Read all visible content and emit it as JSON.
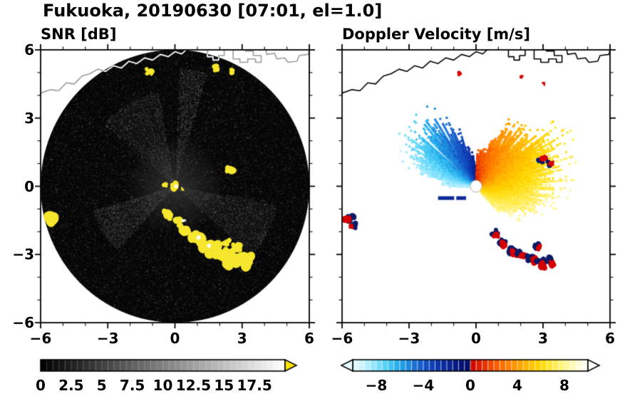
{
  "figure": {
    "title": "Fukuoka, 20190630 [07:01, el=1.0]",
    "background": "#ffffff",
    "text_color": "#000000",
    "frame_color": "#000000"
  },
  "chart_data": [
    {
      "type": "heatmap",
      "variant": "radar-ppi",
      "title": "SNR [dB]",
      "xlim": [
        -6,
        6
      ],
      "ylim": [
        -6,
        6
      ],
      "xticks": [
        -6,
        -3,
        0,
        3,
        6
      ],
      "xtick_labels": [
        "−6",
        "−3",
        "0",
        "3",
        "6"
      ],
      "yticks": [
        -6,
        -3,
        0,
        3,
        6
      ],
      "ytick_labels": [
        "−6",
        "−3",
        "0",
        "3",
        "6"
      ],
      "minor_tick_step": 1,
      "colorbar": {
        "min": 0,
        "max": 20,
        "segments": 40,
        "kind": "grayscale",
        "tick_values": [
          0,
          2.5,
          5,
          7.5,
          10,
          12.5,
          15,
          17.5
        ],
        "tick_labels": [
          "0",
          "2.5",
          "5",
          "7.5",
          "10",
          "12.5",
          "15",
          "17.5"
        ],
        "over_color": "#ffe600",
        "extend": "max"
      },
      "features": {
        "scan_disk": {
          "cx": 0,
          "cy": 0,
          "r": 6,
          "fill": "#060606"
        },
        "noise_seed": 20190630,
        "speckle_count": 15000,
        "bright_wedges": [
          {
            "az0": 100,
            "az1": 140,
            "r1": 4.2,
            "alpha": 0.05
          },
          {
            "az0": 196,
            "az1": 228,
            "r1": 3.8,
            "alpha": 0.06
          },
          {
            "az0": 318,
            "az1": 352,
            "r1": 4.6,
            "alpha": 0.05
          },
          {
            "az0": 74,
            "az1": 88,
            "r1": 5.2,
            "alpha": 0.04
          }
        ],
        "echo_color": "#f6e62e",
        "strong_echoes": [
          {
            "x": -0.35,
            "y": -1.25,
            "s": 0.28
          },
          {
            "x": 0.1,
            "y": -1.6,
            "s": 0.24
          },
          {
            "x": 0.5,
            "y": -1.95,
            "s": 0.3
          },
          {
            "x": 0.92,
            "y": -2.18,
            "s": 0.34
          },
          {
            "x": 1.32,
            "y": -2.5,
            "s": 0.38
          },
          {
            "x": 1.72,
            "y": -2.8,
            "s": 0.42
          },
          {
            "x": 2.12,
            "y": -3.02,
            "s": 0.38
          },
          {
            "x": 2.52,
            "y": -3.22,
            "s": 0.42
          },
          {
            "x": 2.95,
            "y": -3.38,
            "s": 0.46
          },
          {
            "x": 3.32,
            "y": -3.26,
            "s": 0.36
          },
          {
            "x": 2.75,
            "y": -2.68,
            "s": 0.26
          },
          {
            "x": 2.3,
            "y": -2.5,
            "s": 0.2
          }
        ],
        "edge_echo": {
          "x": -5.6,
          "y": -1.55,
          "s": 0.42
        },
        "coast_echoes": [
          {
            "x": -1.15,
            "y": 5.05,
            "s": 0.2
          },
          {
            "x": 1.9,
            "y": 5.2,
            "s": 0.22
          },
          {
            "x": 2.55,
            "y": 5.05,
            "s": 0.18
          }
        ],
        "mid_echo": {
          "x": 2.45,
          "y": 0.78,
          "s": 0.26
        },
        "center_cluster": [
          {
            "x": 0.0,
            "y": 0.02,
            "s": 0.22
          },
          {
            "x": -0.45,
            "y": 0.06,
            "s": 0.12
          },
          {
            "x": 0.3,
            "y": -0.12,
            "s": 0.1
          }
        ],
        "white_dashes": [
          {
            "x": 1.05,
            "y": -2.25,
            "s": 0.12
          },
          {
            "x": 1.5,
            "y": -2.62,
            "s": 0.1
          },
          {
            "x": 0.4,
            "y": -1.55,
            "s": 0.09
          }
        ]
      }
    },
    {
      "type": "heatmap",
      "variant": "radar-ppi",
      "title": "Doppler Velocity [m/s]",
      "xlim": [
        -6,
        6
      ],
      "ylim": [
        -6,
        6
      ],
      "xticks": [
        -6,
        -3,
        0,
        3,
        6
      ],
      "xtick_labels": [
        "−6",
        "−3",
        "0",
        "3",
        "6"
      ],
      "yticks": [
        -6,
        -3,
        0,
        3,
        6
      ],
      "ytick_labels": [],
      "minor_tick_step": 1,
      "colorbar": {
        "min": -10,
        "max": 10,
        "segments": 40,
        "kind": "velocity",
        "tick_values": [
          -8,
          -4,
          0,
          4,
          8
        ],
        "tick_labels": [
          "−8",
          "−4",
          "0",
          "4",
          "8"
        ],
        "extend": "both"
      },
      "features": {
        "palette_stops": [
          [
            -10,
            "#eafbff"
          ],
          [
            -9,
            "#c0f1ff"
          ],
          [
            -8,
            "#84e3ff"
          ],
          [
            -7,
            "#49ccf6"
          ],
          [
            -6,
            "#22a7ea"
          ],
          [
            -5,
            "#1c7dd8"
          ],
          [
            -4,
            "#1554c6"
          ],
          [
            -3,
            "#0e3ab0"
          ],
          [
            -2,
            "#0a2798"
          ],
          [
            -1,
            "#05167c"
          ],
          [
            -0.05,
            "#020c62"
          ],
          [
            0.05,
            "#cf0000"
          ],
          [
            1,
            "#e22900"
          ],
          [
            2,
            "#f25300"
          ],
          [
            3,
            "#ff7900"
          ],
          [
            4,
            "#ff9c00"
          ],
          [
            5,
            "#ffbd00"
          ],
          [
            6,
            "#ffd800"
          ],
          [
            7,
            "#ffea45"
          ],
          [
            8,
            "#fff590"
          ],
          [
            9,
            "#fffbc9"
          ],
          [
            10,
            "#ffffff"
          ]
        ],
        "fan_lobes": [
          {
            "az0": 92,
            "az1": 182,
            "r_base": 0.9,
            "r_amp": 2.3,
            "v_start": -0.8,
            "v_end": -8.2,
            "v_rgrad": -2.0,
            "gaps": [
              104,
              121,
              137
            ]
          },
          {
            "az0": -48,
            "az1": 88,
            "r_base": 1.2,
            "r_amp": 2.2,
            "v_start": 7.0,
            "v_end": 0.8,
            "v_rgrad": 2.2,
            "gaps": [
              47,
              66
            ]
          }
        ],
        "center_hole_r": 0.26,
        "west_streak": {
          "x0": -1.7,
          "x1": -0.45,
          "y": -0.52,
          "h": 0.16,
          "color": "#0a2798"
        },
        "clutter_color_dark": "#0a1a66",
        "clutter_color_red": "#d40000",
        "clutter_arc": [
          {
            "x": 0.85,
            "y": -2.05,
            "s": 0.22
          },
          {
            "x": 1.2,
            "y": -2.45,
            "s": 0.26
          },
          {
            "x": 1.62,
            "y": -2.78,
            "s": 0.3
          },
          {
            "x": 2.0,
            "y": -2.92,
            "s": 0.26
          },
          {
            "x": 2.45,
            "y": -3.15,
            "s": 0.3
          },
          {
            "x": 2.9,
            "y": -3.38,
            "s": 0.32
          },
          {
            "x": 3.28,
            "y": -3.28,
            "s": 0.26
          },
          {
            "x": 2.72,
            "y": -2.62,
            "s": 0.2
          }
        ],
        "isolated_echoes": [
          {
            "x": -5.62,
            "y": -1.4,
            "s": 0.3
          },
          {
            "x": -5.5,
            "y": -1.75,
            "s": 0.2
          },
          {
            "x": 2.9,
            "y": 1.15,
            "s": 0.24
          },
          {
            "x": 3.3,
            "y": 0.98,
            "s": 0.2
          }
        ],
        "coast_specks": [
          {
            "x": -0.72,
            "y": 4.95,
            "s": 0.14
          },
          {
            "x": 2.05,
            "y": 4.82,
            "s": 0.12
          },
          {
            "x": 3.0,
            "y": 4.5,
            "s": 0.12
          }
        ]
      }
    }
  ],
  "coastline": {
    "color_right": "#000000",
    "color_inside_disk": "#ffffff",
    "color_outside_disk": "#9a9a9a",
    "main": [
      [
        -6,
        4.1
      ],
      [
        -5.55,
        4.25
      ],
      [
        -5.2,
        4.2
      ],
      [
        -4.85,
        4.55
      ],
      [
        -4.5,
        4.5
      ],
      [
        -4.15,
        4.85
      ],
      [
        -3.8,
        4.95
      ],
      [
        -3.45,
        5.15
      ],
      [
        -3.1,
        5.05
      ],
      [
        -2.75,
        5.3
      ],
      [
        -2.4,
        5.2
      ],
      [
        -2.05,
        5.5
      ],
      [
        -1.7,
        5.4
      ],
      [
        -1.35,
        5.65
      ],
      [
        -1.0,
        5.55
      ],
      [
        -0.65,
        5.8
      ],
      [
        -0.3,
        5.7
      ],
      [
        0.0,
        5.92
      ],
      [
        0.3,
        5.82
      ],
      [
        0.55,
        6.05
      ]
    ],
    "port1": [
      [
        1.45,
        6.05
      ],
      [
        1.45,
        5.7
      ],
      [
        1.7,
        5.7
      ],
      [
        1.7,
        5.55
      ],
      [
        1.95,
        5.55
      ],
      [
        1.95,
        5.75
      ],
      [
        2.2,
        5.75
      ],
      [
        2.2,
        6.05
      ]
    ],
    "port2": [
      [
        2.6,
        6.05
      ],
      [
        2.6,
        5.6
      ],
      [
        2.9,
        5.6
      ],
      [
        2.9,
        5.45
      ],
      [
        3.25,
        5.45
      ],
      [
        3.25,
        5.6
      ],
      [
        3.6,
        5.6
      ],
      [
        3.6,
        5.45
      ],
      [
        3.85,
        5.45
      ],
      [
        3.85,
        5.75
      ],
      [
        3.5,
        5.75
      ],
      [
        3.5,
        5.95
      ],
      [
        3.15,
        5.95
      ],
      [
        3.15,
        6.05
      ]
    ],
    "main2": [
      [
        4.05,
        6.05
      ],
      [
        4.1,
        5.8
      ],
      [
        4.45,
        5.85
      ],
      [
        4.55,
        5.6
      ],
      [
        4.9,
        5.65
      ],
      [
        5.05,
        5.45
      ],
      [
        5.45,
        5.5
      ],
      [
        5.55,
        5.75
      ],
      [
        5.95,
        5.8
      ],
      [
        6.0,
        6.0
      ]
    ]
  }
}
